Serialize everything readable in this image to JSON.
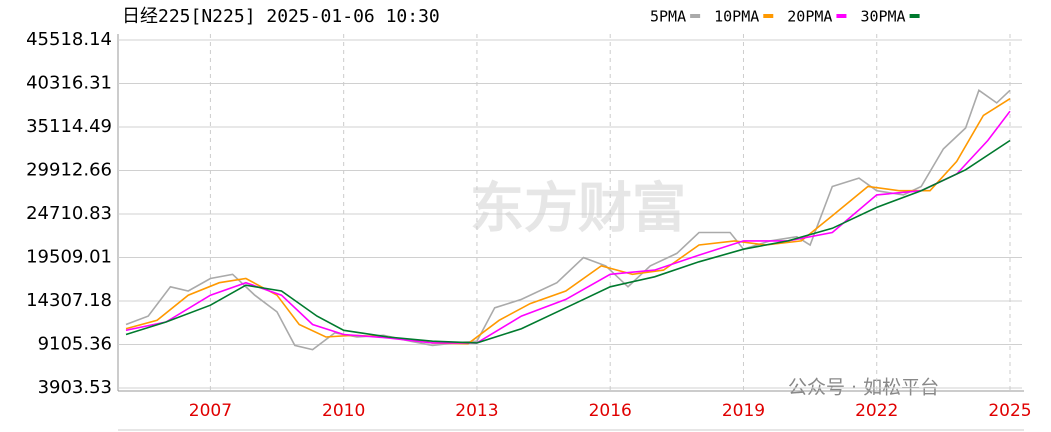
{
  "chart_data": {
    "type": "line",
    "title": "日经225[N225] 2025-01-06 10:30",
    "watermark": "东方财富",
    "annotation": "公众号 · 如松平台",
    "xlim": [
      2004.92,
      2025.27
    ],
    "ylim": [
      3903.53,
      45518.14
    ],
    "xticks": [
      2007,
      2010,
      2013,
      2016,
      2019,
      2022,
      2025
    ],
    "yticks": [
      3903.53,
      9105.36,
      14307.18,
      19509.01,
      24710.83,
      29912.66,
      35114.49,
      40316.31,
      45518.14
    ],
    "grid": true,
    "series": [
      {
        "name": "5PMA",
        "color": "#aaaaaa",
        "x": [
          2005.1,
          2005.6,
          2006.1,
          2006.5,
          2007.0,
          2007.5,
          2008.0,
          2008.5,
          2008.9,
          2009.3,
          2009.8,
          2010.3,
          2010.9,
          2011.5,
          2012.0,
          2012.5,
          2013.0,
          2013.4,
          2014.0,
          2014.8,
          2015.4,
          2015.9,
          2016.4,
          2016.9,
          2017.5,
          2018.0,
          2018.7,
          2019.0,
          2019.6,
          2020.2,
          2020.5,
          2021.0,
          2021.6,
          2022.0,
          2022.6,
          2023.0,
          2023.5,
          2024.0,
          2024.3,
          2024.7,
          2025.0
        ],
        "values": [
          11500,
          12500,
          16000,
          15500,
          17000,
          17500,
          15000,
          13000,
          9000,
          8500,
          10500,
          10000,
          10200,
          9500,
          9000,
          9300,
          9500,
          13500,
          14500,
          16500,
          19500,
          18500,
          16000,
          18500,
          20000,
          22500,
          22500,
          20500,
          21500,
          22000,
          21000,
          28000,
          29000,
          27500,
          27000,
          28000,
          32500,
          35000,
          39500,
          38000,
          39500
        ]
      },
      {
        "name": "10PMA",
        "color": "#ff9900",
        "x": [
          2005.1,
          2005.8,
          2006.5,
          2007.2,
          2007.8,
          2008.5,
          2009.0,
          2009.6,
          2010.2,
          2011.0,
          2012.0,
          2012.8,
          2013.5,
          2014.2,
          2015.0,
          2015.8,
          2016.5,
          2017.2,
          2018.0,
          2018.8,
          2019.5,
          2020.3,
          2021.0,
          2021.8,
          2022.5,
          2023.2,
          2023.8,
          2024.4,
          2025.0
        ],
        "values": [
          11000,
          12000,
          15000,
          16500,
          17000,
          15000,
          11500,
          10000,
          10200,
          10000,
          9300,
          9200,
          12000,
          14000,
          15500,
          18500,
          17500,
          18000,
          21000,
          21500,
          21000,
          21500,
          24500,
          28000,
          27500,
          27500,
          31000,
          36500,
          38500
        ]
      },
      {
        "name": "20PMA",
        "color": "#ff00ff",
        "x": [
          2005.1,
          2006.0,
          2007.0,
          2007.8,
          2008.6,
          2009.3,
          2010.0,
          2011.0,
          2012.0,
          2013.0,
          2014.0,
          2015.0,
          2016.0,
          2017.0,
          2018.0,
          2019.0,
          2020.0,
          2021.0,
          2022.0,
          2023.0,
          2023.8,
          2024.5,
          2025.0
        ],
        "values": [
          10800,
          11800,
          15000,
          16500,
          15000,
          11500,
          10300,
          9900,
          9300,
          9300,
          12500,
          14500,
          17500,
          18000,
          19800,
          21500,
          21500,
          22500,
          27000,
          27500,
          29500,
          33500,
          37000
        ]
      },
      {
        "name": "30PMA",
        "color": "#007a2e",
        "x": [
          2005.1,
          2006.0,
          2007.0,
          2007.8,
          2008.6,
          2009.4,
          2010.0,
          2011.0,
          2012.0,
          2013.0,
          2014.0,
          2015.0,
          2016.0,
          2017.0,
          2018.0,
          2019.0,
          2020.0,
          2021.0,
          2022.0,
          2023.0,
          2024.0,
          2025.0
        ],
        "values": [
          10300,
          11800,
          13800,
          16200,
          15500,
          12500,
          10800,
          10000,
          9500,
          9300,
          11000,
          13500,
          16000,
          17200,
          19000,
          20500,
          21500,
          23000,
          25500,
          27500,
          30000,
          33500
        ]
      }
    ]
  }
}
